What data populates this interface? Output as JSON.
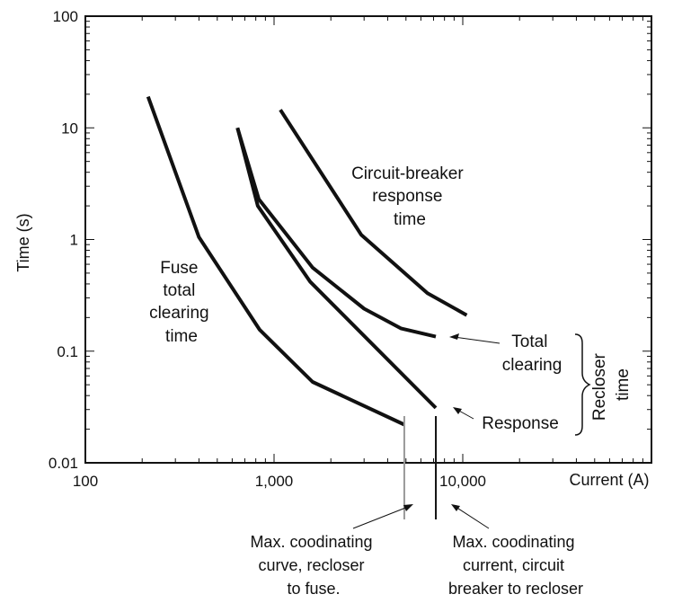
{
  "chart_data": {
    "type": "line",
    "x_scale": "log",
    "y_scale": "log",
    "xlim": [
      100,
      100000
    ],
    "ylim": [
      0.01,
      100
    ],
    "xlabel": "Current (A)",
    "ylabel": "Time (s)",
    "x_ticks": [
      {
        "value": 100,
        "label": "100"
      },
      {
        "value": 1000,
        "label": "1,000"
      },
      {
        "value": 10000,
        "label": "10,000"
      }
    ],
    "y_ticks": [
      {
        "value": 100,
        "label": "100"
      },
      {
        "value": 10,
        "label": "10"
      },
      {
        "value": 1,
        "label": "1"
      },
      {
        "value": 0.1,
        "label": "0.1"
      },
      {
        "value": 0.01,
        "label": "0.01"
      }
    ],
    "series": [
      {
        "key": "fuse",
        "points": [
          [
            215,
            19
          ],
          [
            400,
            1.05
          ],
          [
            840,
            0.155
          ],
          [
            1600,
            0.053
          ],
          [
            4900,
            0.022
          ]
        ]
      },
      {
        "key": "recloser_response",
        "points": [
          [
            640,
            10
          ],
          [
            820,
            2.0
          ],
          [
            1550,
            0.42
          ],
          [
            7200,
            0.031
          ]
        ]
      },
      {
        "key": "recloser_total",
        "points": [
          [
            640,
            10
          ],
          [
            830,
            2.3
          ],
          [
            1600,
            0.56
          ],
          [
            3000,
            0.24
          ],
          [
            4700,
            0.16
          ],
          [
            7200,
            0.135
          ]
        ]
      },
      {
        "key": "breaker",
        "points": [
          [
            1080,
            14.5
          ],
          [
            2900,
            1.1
          ],
          [
            6500,
            0.33
          ],
          [
            10500,
            0.21
          ]
        ]
      }
    ],
    "annotations": {
      "fuse": [
        "Fuse",
        "total",
        "clearing",
        "time"
      ],
      "breaker": [
        "Circuit-breaker",
        "response",
        "time"
      ],
      "total_clearing": [
        "Total",
        "clearing"
      ],
      "response": "Response",
      "recloser_time": [
        "Recloser",
        "time"
      ],
      "note_left": [
        "Max. coodinating",
        "curve, recloser",
        "to fuse."
      ],
      "note_right": [
        "Max. coodinating",
        "current, circuit",
        "breaker to recloser"
      ]
    },
    "markers": [
      {
        "key": "fuse_limit",
        "x": 4900,
        "color": "#999999"
      },
      {
        "key": "breaker_limit",
        "x": 7200,
        "color": "#111111"
      }
    ],
    "grid": false
  }
}
